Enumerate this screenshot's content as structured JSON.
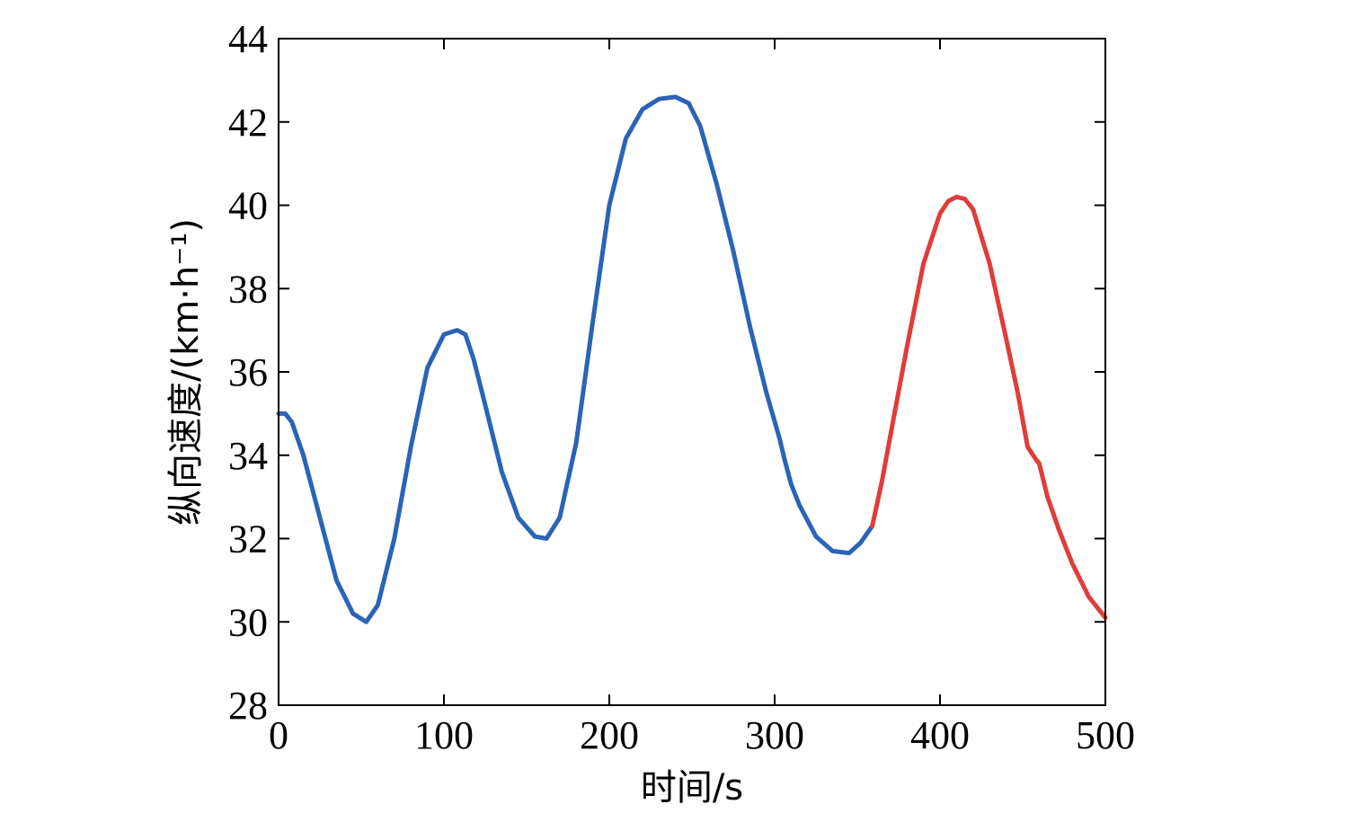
{
  "chart_data": {
    "type": "line",
    "xlabel": "时间/s",
    "ylabel": "纵向速度/(km·h⁻¹)",
    "xlim": [
      0,
      500
    ],
    "ylim": [
      28,
      44
    ],
    "xticks": [
      0,
      100,
      200,
      300,
      400,
      500
    ],
    "yticks": [
      28,
      30,
      32,
      34,
      36,
      38,
      40,
      42,
      44
    ],
    "grid": false,
    "series": [
      {
        "color": "#2b63b6",
        "x": [
          0,
          4,
          8,
          15,
          25,
          35,
          45,
          53,
          60,
          70,
          80,
          90,
          100,
          108,
          113,
          118,
          125,
          135,
          145,
          155,
          162,
          170,
          180,
          190,
          200,
          210,
          220,
          230,
          240,
          248,
          255,
          265,
          275,
          285,
          295,
          303,
          306,
          310,
          315,
          325,
          335,
          345,
          352,
          359
        ],
        "y": [
          35.0,
          35.0,
          34.8,
          34.0,
          32.5,
          31.0,
          30.2,
          30.0,
          30.4,
          32.0,
          34.2,
          36.1,
          36.9,
          37.0,
          36.9,
          36.3,
          35.2,
          33.6,
          32.5,
          32.05,
          32.0,
          32.5,
          34.3,
          37.2,
          40.0,
          41.6,
          42.3,
          42.55,
          42.6,
          42.45,
          41.9,
          40.5,
          38.9,
          37.1,
          35.5,
          34.4,
          33.9,
          33.3,
          32.8,
          32.05,
          31.7,
          31.65,
          31.9,
          32.3
        ]
      },
      {
        "color": "#e03c3c",
        "x": [
          359,
          365,
          372,
          380,
          390,
          400,
          405,
          410,
          415,
          420,
          430,
          440,
          447,
          453,
          458,
          460,
          465,
          472,
          480,
          490,
          500
        ],
        "y": [
          32.3,
          33.4,
          34.9,
          36.6,
          38.6,
          39.8,
          40.1,
          40.2,
          40.15,
          39.9,
          38.6,
          36.8,
          35.5,
          34.2,
          33.9,
          33.8,
          33.0,
          32.2,
          31.4,
          30.6,
          30.1
        ]
      }
    ]
  }
}
